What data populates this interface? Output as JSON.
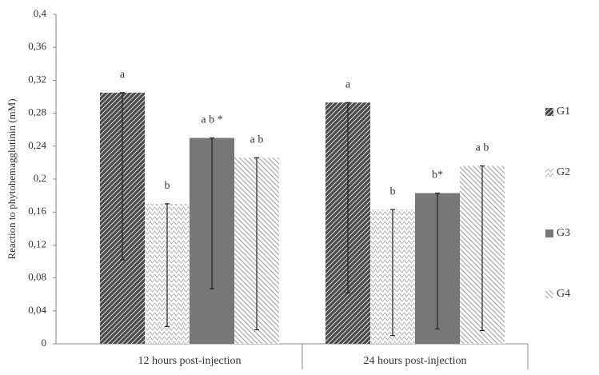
{
  "chart_data": {
    "type": "bar",
    "y_label": "Reaction to phytohemagglutinin (mM)",
    "categories": [
      "12 hours post-injection",
      "24 hours post-injection"
    ],
    "series": [
      {
        "name": "G1",
        "color": "#4a4a4a",
        "values": [
          0.305,
          0.293
        ],
        "errors": [
          0.203,
          0.231
        ],
        "letters": [
          "a",
          "a"
        ]
      },
      {
        "name": "G2",
        "color": "#b0b0b0",
        "values": [
          0.17,
          0.163
        ],
        "errors": [
          0.149,
          0.153
        ],
        "letters": [
          "b",
          "b"
        ]
      },
      {
        "name": "G3",
        "color": "#777777",
        "values": [
          0.25,
          0.183
        ],
        "errors": [
          0.183,
          0.165
        ],
        "letters": [
          "a b *",
          "b*"
        ]
      },
      {
        "name": "G4",
        "color": "#a8a8a8",
        "values": [
          0.226,
          0.216
        ],
        "errors": [
          0.209,
          0.2
        ],
        "letters": [
          "a b",
          "a b"
        ]
      }
    ],
    "ylim": [
      0,
      0.4
    ],
    "yticks": [
      0,
      {
        "value": 0.04,
        "label": "0,04"
      },
      {
        "value": 0.08,
        "label": "0,08"
      },
      {
        "value": 0.12,
        "label": "0,12"
      },
      {
        "value": 0.16,
        "label": "0,16"
      },
      {
        "value": 0.2,
        "label": "0,2"
      },
      {
        "value": 0.24,
        "label": "0,24"
      },
      {
        "value": 0.28,
        "label": "0,28"
      },
      {
        "value": 0.32,
        "label": "0,32"
      },
      {
        "value": 0.36,
        "label": "0,36"
      },
      {
        "value": 0.4,
        "label": "0,4"
      }
    ]
  }
}
